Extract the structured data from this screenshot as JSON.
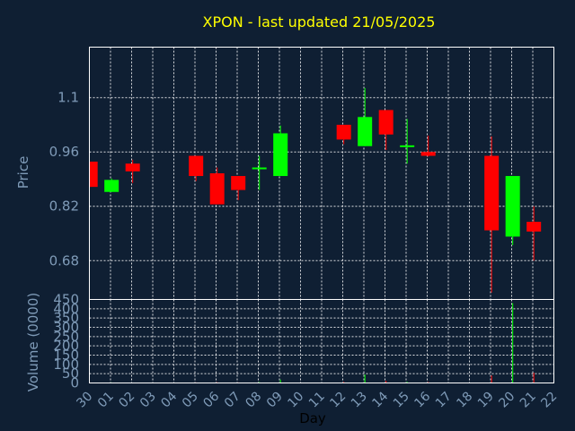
{
  "chart_data": {
    "type": "candlestick",
    "title": "XPON - last updated 21/05/2025",
    "xlabel": "Day",
    "ylabel": "Price",
    "volume_ylabel": "Volume (0000)",
    "x_ticks": [
      "30",
      "01",
      "02",
      "03",
      "04",
      "05",
      "06",
      "07",
      "08",
      "09",
      "10",
      "11",
      "12",
      "13",
      "14",
      "15",
      "16",
      "17",
      "18",
      "19",
      "20",
      "21",
      "22"
    ],
    "price_ticks": [
      0.68,
      0.82,
      0.96,
      1.1
    ],
    "price_tick_labels": [
      "0.68",
      "0.82",
      "0.96",
      "1.1"
    ],
    "price_ylim": [
      0.58,
      1.23
    ],
    "volume_ticks": [
      0,
      50,
      100,
      150,
      200,
      250,
      300,
      350,
      400,
      450
    ],
    "volume_tick_labels": [
      "0",
      "50",
      "100",
      "150",
      "200",
      "250",
      "300",
      "350",
      "400",
      "450"
    ],
    "volume_ylim": [
      0,
      450
    ],
    "grid": true,
    "colors": {
      "up": "#00ff00",
      "down": "#ff0000",
      "background": "#0f1f33",
      "title": "#ffff00",
      "axis": "#7f9bb8"
    },
    "candles": [
      {
        "x": 0,
        "open": 0.935,
        "high": 0.935,
        "low": 0.87,
        "close": 0.87
      },
      {
        "x": 1,
        "open": 0.857,
        "high": 0.892,
        "low": 0.857,
        "close": 0.888
      },
      {
        "x": 2,
        "open": 0.93,
        "high": 0.94,
        "low": 0.88,
        "close": 0.91
      },
      {
        "x": 5,
        "open": 0.95,
        "high": 0.95,
        "low": 0.885,
        "close": 0.898
      },
      {
        "x": 6,
        "open": 0.905,
        "high": 0.92,
        "low": 0.825,
        "close": 0.825
      },
      {
        "x": 7,
        "open": 0.898,
        "high": 0.898,
        "low": 0.836,
        "close": 0.862
      },
      {
        "x": 8,
        "open": 0.916,
        "high": 0.95,
        "low": 0.862,
        "close": 0.92
      },
      {
        "x": 9,
        "open": 0.898,
        "high": 1.028,
        "low": 0.898,
        "close": 1.008
      },
      {
        "x": 12,
        "open": 1.03,
        "high": 1.03,
        "low": 0.98,
        "close": 0.992
      },
      {
        "x": 13,
        "open": 0.975,
        "high": 1.125,
        "low": 0.975,
        "close": 1.05
      },
      {
        "x": 14,
        "open": 1.068,
        "high": 1.068,
        "low": 0.965,
        "close": 1.005
      },
      {
        "x": 15,
        "open": 0.975,
        "high": 1.045,
        "low": 0.93,
        "close": 0.977
      },
      {
        "x": 16,
        "open": 0.96,
        "high": 1.002,
        "low": 0.948,
        "close": 0.95
      },
      {
        "x": 19,
        "open": 0.95,
        "high": 1.0,
        "low": 0.598,
        "close": 0.758
      },
      {
        "x": 20,
        "open": 0.742,
        "high": 0.898,
        "low": 0.72,
        "close": 0.898
      },
      {
        "x": 21,
        "open": 0.78,
        "high": 0.82,
        "low": 0.68,
        "close": 0.755
      }
    ],
    "volume": [
      {
        "x": 0,
        "value": 2
      },
      {
        "x": 1,
        "value": 3
      },
      {
        "x": 2,
        "value": 2
      },
      {
        "x": 5,
        "value": 3
      },
      {
        "x": 6,
        "value": 4
      },
      {
        "x": 7,
        "value": 3
      },
      {
        "x": 8,
        "value": 5
      },
      {
        "x": 9,
        "value": 18
      },
      {
        "x": 12,
        "value": 6
      },
      {
        "x": 13,
        "value": 45
      },
      {
        "x": 14,
        "value": 12
      },
      {
        "x": 15,
        "value": 6
      },
      {
        "x": 16,
        "value": 5
      },
      {
        "x": 19,
        "value": 40
      },
      {
        "x": 20,
        "value": 430
      },
      {
        "x": 21,
        "value": 55
      }
    ]
  }
}
